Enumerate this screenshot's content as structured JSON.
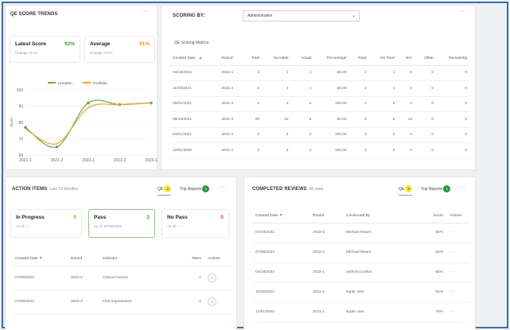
{
  "trends": {
    "title": "QE SCORE TRENDS",
    "more": "···",
    "latest": {
      "label": "Latest Score",
      "value": "92%",
      "sub": "Change of  1%"
    },
    "average": {
      "label": "Average",
      "value": "91%",
      "sub": "Change of  2%"
    }
  },
  "chart_data": {
    "type": "line",
    "title": "",
    "xlabel": "",
    "ylabel": "Score",
    "categories": [
      "2021-1",
      "2021-2",
      "2022-1",
      "2022-2",
      "2023-1"
    ],
    "ylim": [
      60,
      100
    ],
    "yticks": [
      60,
      70,
      80,
      90,
      100
    ],
    "legend_position": "top",
    "series": [
      {
        "name": "Houston",
        "color": "#6aa84f",
        "values": [
          77,
          65,
          92,
          91,
          92
        ]
      },
      {
        "name": "Portfolio",
        "color": "#f0a030",
        "values": [
          76,
          67,
          89,
          91,
          92
        ]
      }
    ]
  },
  "scoring": {
    "title": "SCORING BY:",
    "select_value": "Administrative",
    "more": "···",
    "metrics_title": "QE Scoring Metrics",
    "columns": [
      "Created Date",
      "Round",
      "Total",
      "Scorable",
      "Actual",
      "Percentage",
      "Pass",
      "No Pass",
      "N/A",
      "Other",
      "Remaining"
    ],
    "sort_indicator": "▲",
    "rows": [
      [
        "04/18/2022",
        "2022-1",
        "2",
        "2",
        "1",
        "50.00",
        "1",
        "1",
        "0",
        "0",
        "0"
      ],
      [
        "11/03/2021",
        "2021-2",
        "2",
        "2",
        "1",
        "50.00",
        "1",
        "1",
        "0",
        "0",
        "0"
      ],
      [
        "09/01/2021",
        "2021-2",
        "2",
        "2",
        "2",
        "100.00",
        "2",
        "0",
        "0",
        "0",
        "0"
      ],
      [
        "08/10/2021",
        "2021-2",
        "28",
        "15",
        "9",
        "60.00",
        "9",
        "6",
        "13",
        "0",
        "0"
      ],
      [
        "04/01/2021",
        "2021-1",
        "2",
        "2",
        "2",
        "100.00",
        "2",
        "0",
        "0",
        "0",
        "0"
      ],
      [
        "12/01/2020",
        "2021-1",
        "2",
        "2",
        "2",
        "100.00",
        "2",
        "0",
        "0",
        "0",
        "0"
      ]
    ]
  },
  "actions": {
    "title": "ACTION ITEMS",
    "subtitle": "Last 12 months",
    "tab_qe": "QE",
    "tab_qe_count": "2",
    "tab_trip": "Trip Reports",
    "tab_trip_count": "1",
    "more": "···",
    "in_progress": {
      "label": "In Progress",
      "value": "0",
      "sub": "As of:  ---"
    },
    "pass": {
      "label": "Pass",
      "value": "2",
      "sub": "As of:  07/06/2022"
    },
    "no_pass": {
      "label": "No Pass",
      "value": "0",
      "sub": "As of:  ---"
    },
    "columns": [
      "Created Date",
      "Round",
      "Indicator",
      "#Item",
      "Actions"
    ],
    "sort_indicator": "▼",
    "rows": [
      {
        "date": "07/06/2022",
        "round": "2022-2",
        "indicator": "Critical Factors",
        "items": "1",
        "action": "→"
      },
      {
        "date": "07/06/2022",
        "round": "2022-2",
        "indicator": "First Impressions",
        "items": "1",
        "action": "→"
      }
    ]
  },
  "reviews": {
    "title": "COMPLETED REVIEWS",
    "subtitle": "All data",
    "tab_qe": "QE",
    "tab_qe_count": "5",
    "tab_trip": "Trip Reports",
    "tab_trip_count": "1",
    "more": "···",
    "columns": [
      "Created Date",
      "Round",
      "Conducted By",
      "Score",
      "Actions"
    ],
    "sort_indicator": "▼",
    "rows": [
      {
        "date": "07/19/2022",
        "round": "2022-3",
        "by": "Michael Moore",
        "score": "92%",
        "action": "···"
      },
      {
        "date": "07/06/2022",
        "round": "2022-2",
        "by": "Michael Moore",
        "score": "92%",
        "action": "···"
      },
      {
        "date": "04/18/2022",
        "round": "2022-1",
        "by": "anthony.crofton",
        "score": "92%",
        "action": "···"
      },
      {
        "date": "11/03/2021",
        "round": "2021-2",
        "by": "super user",
        "score": "92%",
        "action": "···"
      },
      {
        "date": "12/01/2020",
        "round": "2021-1",
        "by": "super user",
        "score": "78%",
        "action": "···"
      }
    ]
  }
}
